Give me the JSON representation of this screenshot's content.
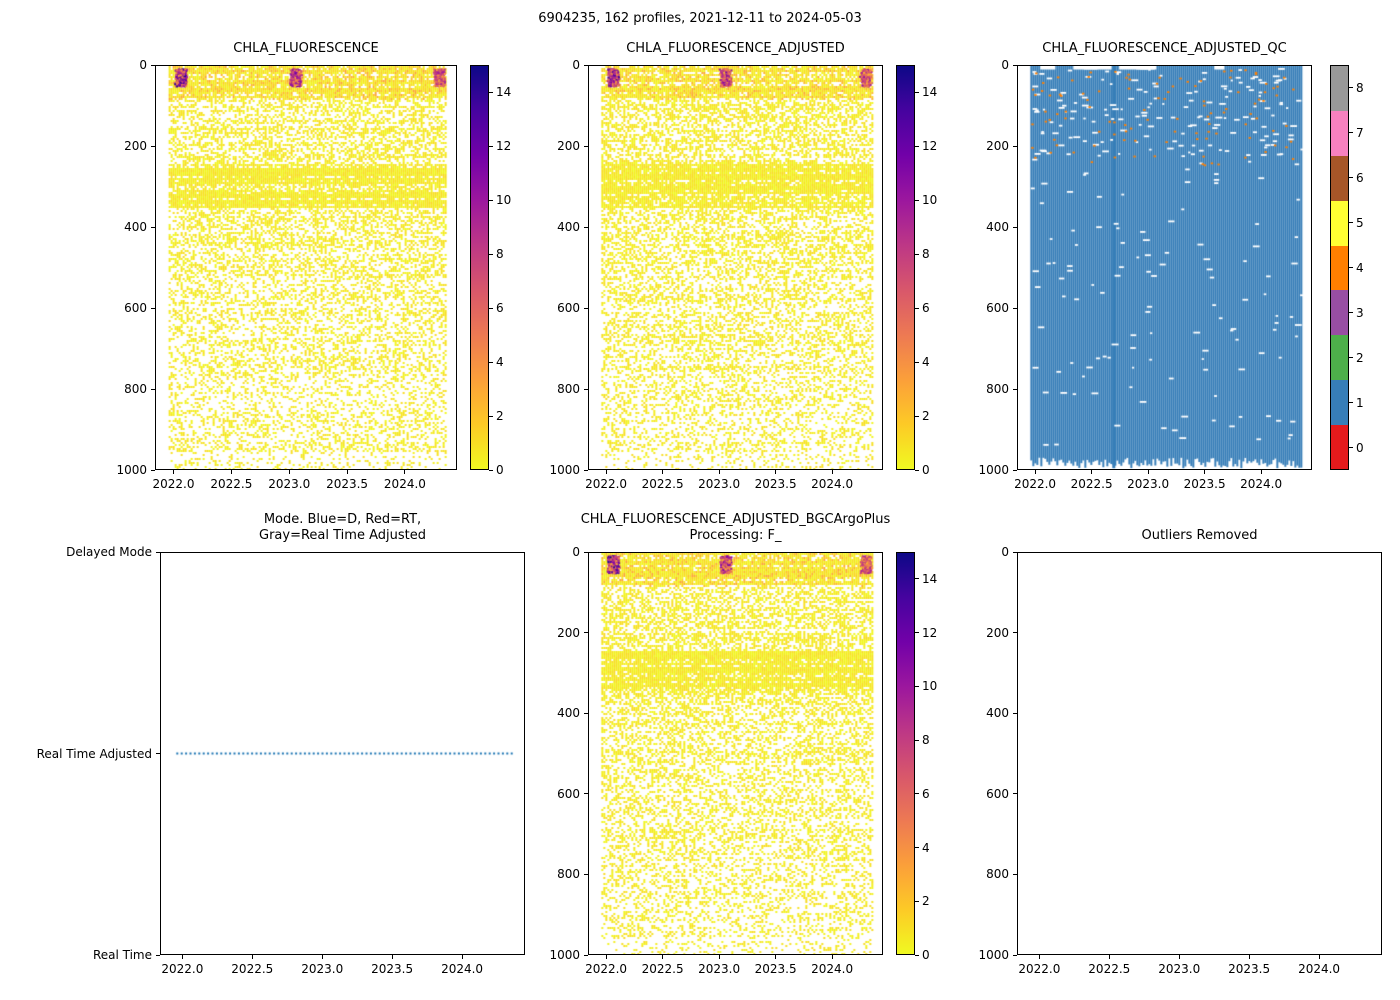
{
  "figure_title": "6904235, 162 profiles, 2021-12-11 to 2024-05-03",
  "axes": {
    "x_range": [
      2021.84,
      2024.45
    ],
    "x_tick_values": [
      2022.0,
      2022.5,
      2023.0,
      2023.5,
      2024.0
    ],
    "x_tick_labels": [
      "2022.0",
      "2022.5",
      "2023.0",
      "2023.5",
      "2024.0"
    ],
    "depth_range": [
      0,
      1000
    ],
    "depth_tick_values": [
      0,
      200,
      400,
      600,
      800,
      1000
    ],
    "depth_tick_labels": [
      "0",
      "200",
      "400",
      "600",
      "800",
      "1000"
    ]
  },
  "palette": {
    "plasma_stops": [
      "#0d0887",
      "#46039f",
      "#7201a8",
      "#9c179e",
      "#bd3786",
      "#d8576b",
      "#ed7953",
      "#fb9f3a",
      "#fdca26",
      "#f0f921"
    ],
    "qc_colors": [
      "#e41a1c",
      "#377eb8",
      "#4daf4a",
      "#984ea3",
      "#ff7f00",
      "#ffff33",
      "#a65628",
      "#f781bf",
      "#999999"
    ],
    "mode_line_color": "#1f77b4",
    "axis_color": "#000000",
    "background": "#ffffff"
  },
  "chart_data": [
    {
      "id": "chla-fluorescence",
      "type": "heatmap",
      "kind": "chla",
      "title": "CHLA_FLUORESCENCE",
      "xlabel": "",
      "ylabel": "",
      "colorbar": {
        "cmap": "plasma_r",
        "vmin": 0,
        "vmax": 15,
        "tick_values": [
          0,
          2,
          4,
          6,
          8,
          10,
          12,
          14
        ],
        "tick_labels": [
          "0",
          "2",
          "4",
          "6",
          "8",
          "10",
          "12",
          "14"
        ]
      },
      "pattern": {
        "time_start": 2021.95,
        "time_end": 2024.36,
        "description": "Sparse yellow speckle (values 0-2) over 0-1000 dbar; dense band 0-75 dbar; dense yellow band 245-350 dbar; high-value surface blooms (dark purple/navy) near 2022.05, 2023.05 and 2024.3",
        "surface_blooms": [
          {
            "time": 2022.05,
            "intensity": 1.0
          },
          {
            "time": 2023.05,
            "intensity": 0.8
          },
          {
            "time": 2024.3,
            "intensity": 0.7
          }
        ],
        "surface_bloom_depth": [
          6,
          48
        ]
      }
    },
    {
      "id": "chla-fluorescence-adjusted",
      "type": "heatmap",
      "kind": "chla",
      "title": "CHLA_FLUORESCENCE_ADJUSTED",
      "xlabel": "",
      "ylabel": "",
      "colorbar": {
        "cmap": "plasma_r",
        "vmin": 0,
        "vmax": 15,
        "tick_values": [
          0,
          2,
          4,
          6,
          8,
          10,
          12,
          14
        ],
        "tick_labels": [
          "0",
          "2",
          "4",
          "6",
          "8",
          "10",
          "12",
          "14"
        ]
      },
      "pattern": {
        "time_start": 2021.95,
        "time_end": 2024.36,
        "description": "Same structure as CHLA_FLUORESCENCE: yellow speckle, dense bands 0-75 and 245-350 dbar, surface blooms",
        "surface_blooms": [
          {
            "time": 2022.05,
            "intensity": 1.0
          },
          {
            "time": 2023.05,
            "intensity": 0.8
          },
          {
            "time": 2024.3,
            "intensity": 0.7
          }
        ],
        "surface_bloom_depth": [
          6,
          48
        ]
      }
    },
    {
      "id": "chla-fluorescence-adjusted-qc",
      "type": "heatmap",
      "kind": "qc",
      "title": "CHLA_FLUORESCENCE_ADJUSTED_QC",
      "xlabel": "",
      "ylabel": "",
      "colorbar": {
        "cmap": "discrete-9",
        "vmin": 0,
        "vmax": 8,
        "tick_values": [
          0,
          1,
          2,
          3,
          4,
          5,
          6,
          7,
          8
        ],
        "tick_labels": [
          "0",
          "1",
          "2",
          "3",
          "4",
          "5",
          "6",
          "7",
          "8"
        ]
      },
      "pattern": {
        "time_start": 2021.95,
        "time_end": 2024.36,
        "dominant_qc_value": 1,
        "max_depth": 982,
        "description": "Solid QC=1 (blue) from surface to ~985 dbar with ragged bottom edge and one deeper spike near 2022.7; sparse white gaps and occasional QC=4 (orange) specks in upper 250 dbar; small white dashes along the top edge"
      }
    },
    {
      "id": "mode",
      "type": "line",
      "kind": "mode",
      "title": "Mode. Blue=D, Red=RT,\nGray=Real Time Adjusted",
      "xlabel": "",
      "ylabel": "",
      "y_categories": [
        "Delayed Mode",
        "Real Time Adjusted",
        "Real Time"
      ],
      "series": [
        {
          "name": "mode",
          "color": "#1f77b4",
          "style": "dotted",
          "value": "Real Time Adjusted",
          "x_start": 2021.95,
          "x_end": 2024.36
        }
      ]
    },
    {
      "id": "chla-fluorescence-adjusted-bgcargoplus",
      "type": "heatmap",
      "kind": "chla",
      "title": "CHLA_FLUORESCENCE_ADJUSTED_BGCArgoPlus\nProcessing: F_",
      "xlabel": "",
      "ylabel": "",
      "colorbar": {
        "cmap": "plasma_r",
        "vmin": 0,
        "vmax": 15,
        "tick_values": [
          0,
          2,
          4,
          6,
          8,
          10,
          12,
          14
        ],
        "tick_labels": [
          "0",
          "2",
          "4",
          "6",
          "8",
          "10",
          "12",
          "14"
        ]
      },
      "pattern": {
        "time_start": 2021.95,
        "time_end": 2024.36,
        "description": "Same structure as adjusted panel: yellow speckle, dense bands 0-75 and 245-350 dbar, surface blooms",
        "surface_blooms": [
          {
            "time": 2022.05,
            "intensity": 1.0
          },
          {
            "time": 2023.05,
            "intensity": 0.8
          },
          {
            "time": 2024.3,
            "intensity": 0.7
          }
        ],
        "surface_bloom_depth": [
          6,
          48
        ]
      }
    },
    {
      "id": "outliers-removed",
      "type": "empty",
      "kind": "empty",
      "title": "Outliers Removed",
      "xlabel": "",
      "ylabel": "",
      "pattern": {
        "description": "Empty axes, no data plotted"
      }
    }
  ]
}
